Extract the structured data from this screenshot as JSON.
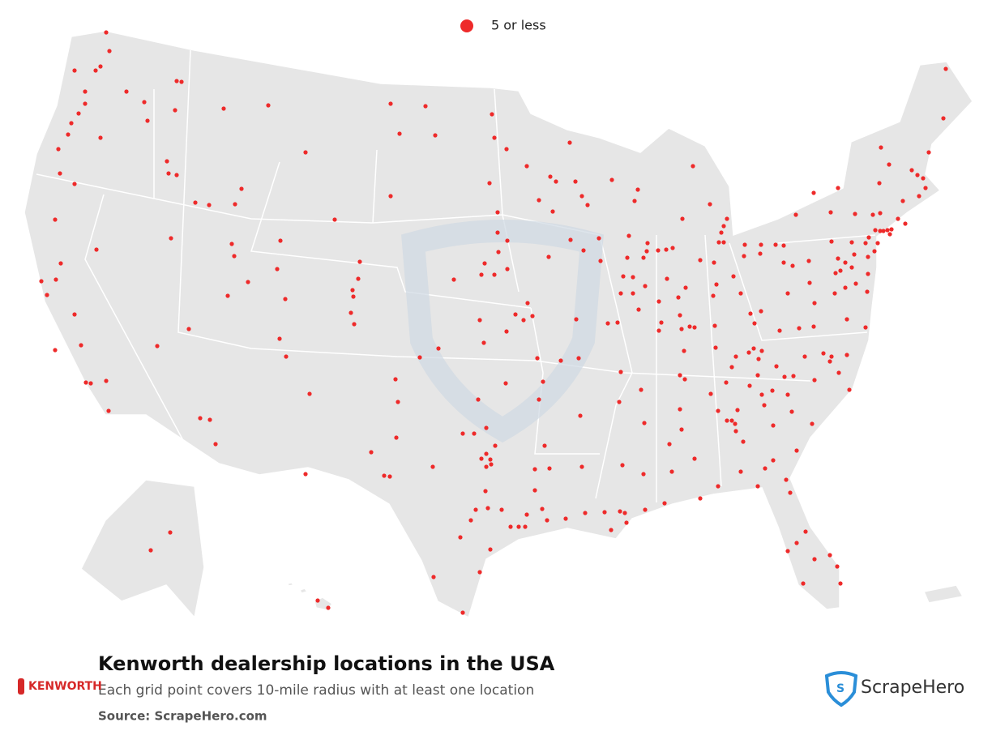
{
  "legend": {
    "label": "5 or less",
    "color": "#ee2a2a"
  },
  "title": "Kenworth dealership locations in the USA",
  "subtitle": "Each grid point covers 10-mile radius with at least one location",
  "source": "Source: ScrapeHero.com",
  "brand": "KENWORTH",
  "logo": "ScrapeHero"
}
